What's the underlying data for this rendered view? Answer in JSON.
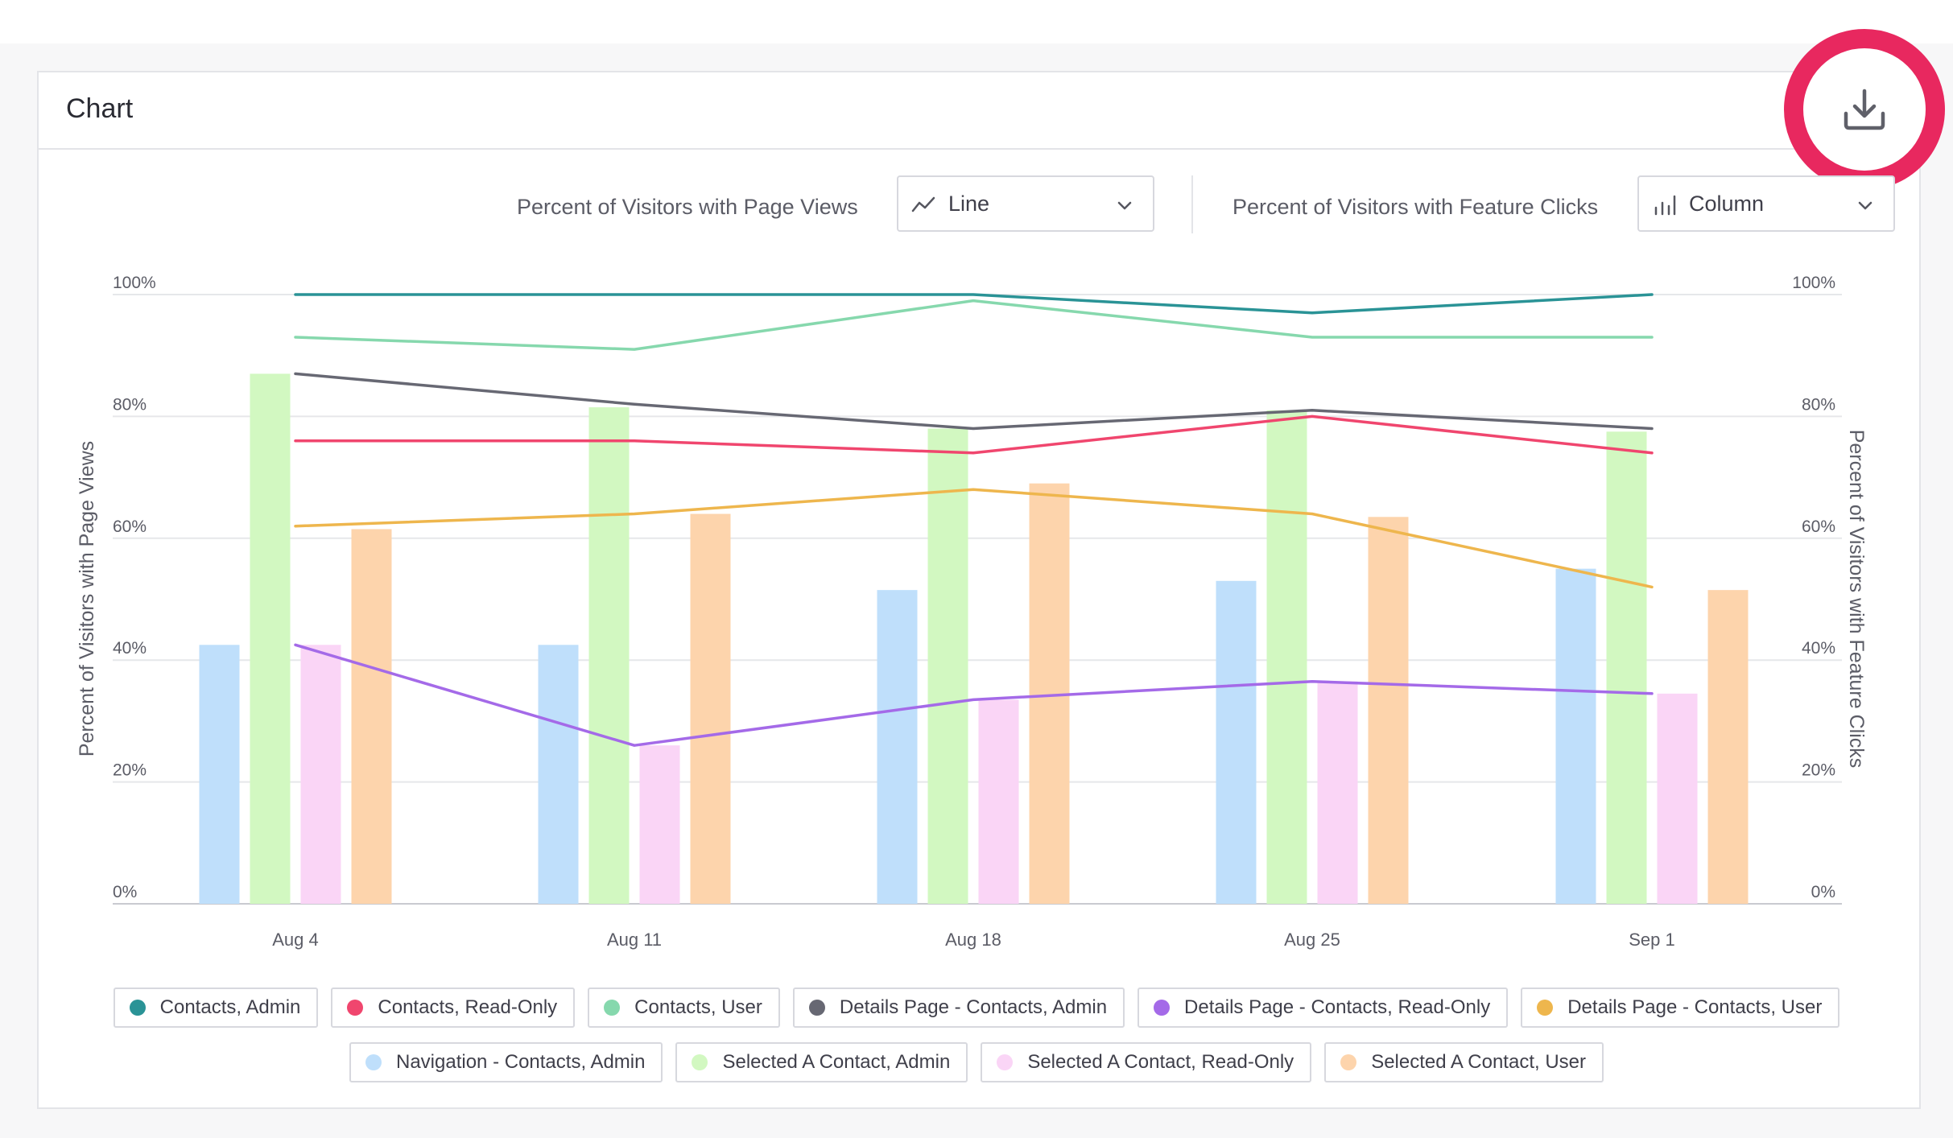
{
  "card": {
    "title": "Chart"
  },
  "controls": {
    "left_label": "Percent of Visitors with Page Views",
    "left_type": "Line",
    "right_label": "Percent of Visitors with Feature Clicks",
    "right_type": "Column"
  },
  "icons": {
    "download": "download-icon",
    "line_chart": "line-chart-icon",
    "column_chart": "column-chart-icon",
    "chevron": "chevron-down-icon"
  },
  "colors": {
    "highlight_ring": "#e8285f",
    "grid": "#e6e7ea",
    "axis_text": "#5b5c66"
  },
  "chart_data": {
    "type": "bar",
    "categories": [
      "Aug 4",
      "Aug 11",
      "Aug 18",
      "Aug 25",
      "Sep 1"
    ],
    "y_ticks": [
      "0%",
      "20%",
      "40%",
      "60%",
      "80%",
      "100%"
    ],
    "y2_ticks": [
      "0%",
      "20%",
      "40%",
      "60%",
      "80%",
      "100%"
    ],
    "ylabel": "Percent of Visitors with Page Views",
    "y2label": "Percent of Visitors with Feature Clicks",
    "ylim": [
      0,
      100
    ],
    "y2lim": [
      0,
      100
    ],
    "grid": true,
    "legend_position": "bottom",
    "line_series": [
      {
        "name": "Contacts, Admin",
        "color": "#2a9396",
        "values": [
          100,
          100,
          100,
          97,
          100
        ]
      },
      {
        "name": "Contacts, Read-Only",
        "color": "#f0466e",
        "values": [
          76,
          76,
          74,
          80,
          74
        ]
      },
      {
        "name": "Contacts, User",
        "color": "#86d8ad",
        "values": [
          93,
          91,
          99,
          93,
          93
        ]
      },
      {
        "name": "Details Page - Contacts, Admin",
        "color": "#676873",
        "values": [
          87,
          82,
          78,
          81,
          78
        ]
      },
      {
        "name": "Details Page - Contacts, Read-Only",
        "color": "#a46ae8",
        "values": [
          42.5,
          26,
          33.5,
          36.5,
          34.5
        ]
      },
      {
        "name": "Details Page - Contacts, User",
        "color": "#eeb64d",
        "values": [
          62,
          64,
          68,
          64,
          52
        ]
      }
    ],
    "bar_series": [
      {
        "name": "Navigation - Contacts, Admin",
        "color": "#bfdffb",
        "values": [
          42.5,
          42.5,
          51.5,
          53,
          55
        ]
      },
      {
        "name": "Selected A Contact, Admin",
        "color": "#d2f8c1",
        "values": [
          87,
          81.5,
          78,
          81,
          77.5
        ]
      },
      {
        "name": "Selected A Contact, Read-Only",
        "color": "#fad5f6",
        "values": [
          42.5,
          26,
          33.5,
          36.5,
          34.5
        ]
      },
      {
        "name": "Selected A Contact, User",
        "color": "#fdd4ac",
        "values": [
          61.5,
          64,
          69,
          63.5,
          51.5
        ]
      }
    ]
  },
  "legend": {
    "row1": [
      {
        "label": "Contacts, Admin",
        "color": "#2a9396"
      },
      {
        "label": "Contacts, Read-Only",
        "color": "#f0466e"
      },
      {
        "label": "Contacts, User",
        "color": "#86d8ad"
      },
      {
        "label": "Details Page - Contacts, Admin",
        "color": "#676873"
      },
      {
        "label": "Details Page - Contacts, Read-Only",
        "color": "#a46ae8"
      },
      {
        "label": "Details Page - Contacts, User",
        "color": "#eeb64d"
      }
    ],
    "row2": [
      {
        "label": "Navigation - Contacts, Admin",
        "color": "#bfdffb"
      },
      {
        "label": "Selected A Contact, Admin",
        "color": "#d2f8c1"
      },
      {
        "label": "Selected A Contact, Read-Only",
        "color": "#fad5f6"
      },
      {
        "label": "Selected A Contact, User",
        "color": "#fdd4ac"
      }
    ]
  }
}
